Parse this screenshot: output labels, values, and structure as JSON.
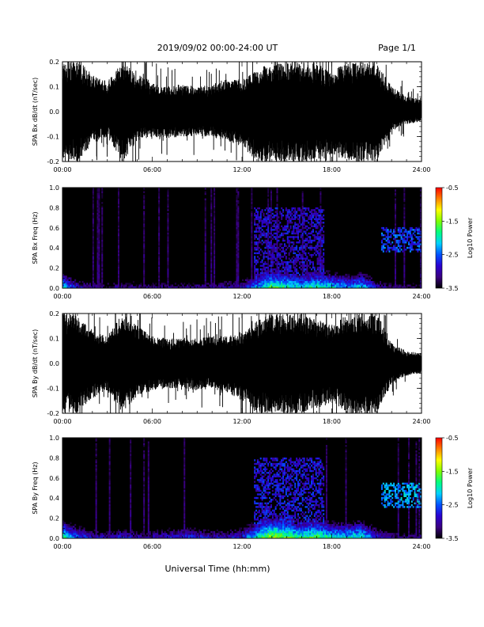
{
  "header": {
    "title": "2019/09/02  00:00-24:00 UT",
    "page": "Page 1/1"
  },
  "footer": {
    "xlabel": "Universal Time (hh:mm)"
  },
  "colors": {
    "trace": "#000000",
    "spectrogram_background": "#000000",
    "colormap": [
      "#000000",
      "#3a0080",
      "#2a00d0",
      "#0050ff",
      "#00d0ff",
      "#00ff80",
      "#80ff00",
      "#ffff00",
      "#ff8000",
      "#ff0000"
    ]
  },
  "chart_data": [
    {
      "type": "area",
      "panel": "bx-waveform",
      "ylabel": "SPA Bx dB/dt (nT/sec)",
      "xlim": [
        0,
        24
      ],
      "ylim": [
        -0.2,
        0.2
      ],
      "x_ticks": [
        "00:00",
        "06:00",
        "12:00",
        "18:00",
        "24:00"
      ],
      "y_ticks": [
        "-0.2",
        "-0.1",
        "0.0",
        "0.1",
        "0.2"
      ],
      "envelope": {
        "x": [
          0,
          1,
          2,
          3,
          4,
          5,
          6,
          7,
          8,
          9,
          10,
          11,
          12,
          13,
          14,
          15,
          16,
          17,
          18,
          19,
          20,
          21,
          22,
          23,
          24
        ],
        "upper": [
          0.2,
          0.2,
          0.15,
          0.12,
          0.2,
          0.15,
          0.12,
          0.1,
          0.11,
          0.1,
          0.11,
          0.13,
          0.13,
          0.17,
          0.2,
          0.2,
          0.2,
          0.2,
          0.16,
          0.2,
          0.2,
          0.2,
          0.1,
          0.06,
          0.05
        ],
        "lower": [
          -0.2,
          -0.2,
          -0.13,
          -0.1,
          -0.2,
          -0.12,
          -0.1,
          -0.11,
          -0.1,
          -0.1,
          -0.1,
          -0.12,
          -0.14,
          -0.2,
          -0.2,
          -0.2,
          -0.2,
          -0.2,
          -0.17,
          -0.2,
          -0.2,
          -0.2,
          -0.08,
          -0.05,
          -0.04
        ]
      }
    },
    {
      "type": "heatmap",
      "panel": "bx-spectrogram",
      "ylabel": "SPA Bx Freq (Hz)",
      "xlim": [
        0,
        24
      ],
      "ylim": [
        0,
        1.0
      ],
      "x_ticks": [
        "00:00",
        "06:00",
        "12:00",
        "18:00",
        "24:00"
      ],
      "y_ticks": [
        "0.0",
        "0.2",
        "0.4",
        "0.6",
        "0.8",
        "1.0"
      ],
      "colorbar": {
        "label": "Log10 Power",
        "range": [
          -3.5,
          -0.5
        ],
        "ticks": [
          "-0.5",
          "-1.5",
          "-2.5",
          "-3.5"
        ]
      },
      "low_freq_power": {
        "x": [
          0,
          1,
          2,
          3,
          4,
          5,
          6,
          7,
          8,
          9,
          10,
          11,
          12,
          13,
          14,
          15,
          16,
          17,
          18,
          19,
          20,
          21,
          22,
          23,
          24
        ],
        "log_power": [
          -2.0,
          -2.8,
          -3.0,
          -3.1,
          -3.0,
          -3.1,
          -3.1,
          -3.1,
          -3.1,
          -3.0,
          -3.0,
          -2.9,
          -2.8,
          -2.2,
          -1.6,
          -1.8,
          -2.0,
          -1.8,
          -2.0,
          -2.2,
          -2.0,
          -2.8,
          -3.1,
          -3.2,
          -3.2
        ]
      },
      "enhanced_bands": [
        {
          "x": [
            12.8,
            17.5
          ],
          "freq": [
            0.0,
            0.8
          ],
          "log_power": -2.9
        },
        {
          "x": [
            21.3,
            24.0
          ],
          "freq": [
            0.35,
            0.6
          ],
          "log_power": -2.6
        }
      ]
    },
    {
      "type": "area",
      "panel": "by-waveform",
      "ylabel": "SPA By dB/dt (nT/sec)",
      "xlim": [
        0,
        24
      ],
      "ylim": [
        -0.2,
        0.2
      ],
      "x_ticks": [
        "00:00",
        "06:00",
        "12:00",
        "18:00",
        "24:00"
      ],
      "y_ticks": [
        "-0.2",
        "-0.1",
        "0.0",
        "0.1",
        "0.2"
      ],
      "envelope": {
        "x": [
          0,
          1,
          2,
          3,
          4,
          5,
          6,
          7,
          8,
          9,
          10,
          11,
          12,
          13,
          14,
          15,
          16,
          17,
          18,
          19,
          20,
          21,
          22,
          23,
          24
        ],
        "upper": [
          0.2,
          0.2,
          0.13,
          0.11,
          0.2,
          0.15,
          0.11,
          0.1,
          0.1,
          0.1,
          0.11,
          0.11,
          0.12,
          0.17,
          0.2,
          0.2,
          0.2,
          0.18,
          0.15,
          0.2,
          0.2,
          0.2,
          0.08,
          0.05,
          0.04
        ],
        "lower": [
          -0.2,
          -0.2,
          -0.14,
          -0.11,
          -0.2,
          -0.13,
          -0.11,
          -0.1,
          -0.1,
          -0.11,
          -0.1,
          -0.12,
          -0.15,
          -0.2,
          -0.2,
          -0.2,
          -0.2,
          -0.18,
          -0.16,
          -0.2,
          -0.2,
          -0.2,
          -0.08,
          -0.05,
          -0.04
        ]
      }
    },
    {
      "type": "heatmap",
      "panel": "by-spectrogram",
      "ylabel": "SPA By Freq (Hz)",
      "xlim": [
        0,
        24
      ],
      "ylim": [
        0,
        1.0
      ],
      "x_ticks": [
        "00:00",
        "06:00",
        "12:00",
        "18:00",
        "24:00"
      ],
      "y_ticks": [
        "0.0",
        "0.2",
        "0.4",
        "0.6",
        "0.8",
        "1.0"
      ],
      "colorbar": {
        "label": "Log10 Power",
        "range": [
          -3.5,
          -0.5
        ],
        "ticks": [
          "-0.5",
          "-1.5",
          "-2.5",
          "-3.5"
        ]
      },
      "low_freq_power": {
        "x": [
          0,
          1,
          2,
          3,
          4,
          5,
          6,
          7,
          8,
          9,
          10,
          11,
          12,
          13,
          14,
          15,
          16,
          17,
          18,
          19,
          20,
          21,
          22,
          23,
          24
        ],
        "log_power": [
          -1.7,
          -2.4,
          -2.8,
          -2.9,
          -2.7,
          -2.9,
          -2.9,
          -2.7,
          -2.6,
          -2.6,
          -2.8,
          -2.8,
          -2.6,
          -1.9,
          -1.3,
          -1.5,
          -1.8,
          -1.6,
          -1.9,
          -2.0,
          -1.8,
          -2.6,
          -3.0,
          -3.1,
          -3.1
        ]
      },
      "enhanced_bands": [
        {
          "x": [
            12.8,
            17.5
          ],
          "freq": [
            0.0,
            0.8
          ],
          "log_power": -2.8
        },
        {
          "x": [
            21.3,
            24.0
          ],
          "freq": [
            0.3,
            0.55
          ],
          "log_power": -2.3
        }
      ]
    }
  ]
}
